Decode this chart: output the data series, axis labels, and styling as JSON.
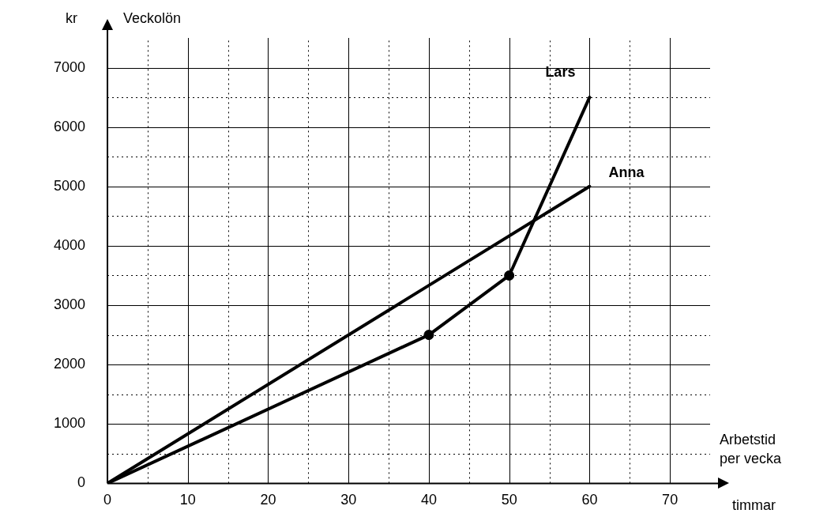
{
  "chart_data": {
    "type": "line",
    "xlabel": "Arbetstid per vecka",
    "ylabel": "Veckolön",
    "annotations": [
      "kr",
      "timmar"
    ],
    "xlim": [
      0,
      75
    ],
    "ylim": [
      0,
      7500
    ],
    "xticks": [
      0,
      {
        "value": 5,
        "label": null
      },
      10,
      {
        "value": 15,
        "label": null
      },
      20,
      {
        "value": 25,
        "label": null
      },
      30,
      {
        "value": 35,
        "label": null
      },
      40,
      {
        "value": 45,
        "label": null
      },
      50,
      {
        "value": 55,
        "label": null
      },
      60,
      {
        "value": 65,
        "label": null
      },
      70
    ],
    "yticks": [
      0,
      {
        "value": 500,
        "label": null
      },
      1000,
      {
        "value": 1500,
        "label": null
      },
      2000,
      {
        "value": 2500,
        "label": null
      },
      3000,
      {
        "value": 3500,
        "label": null
      },
      4000,
      {
        "value": 4500,
        "label": null
      },
      5000,
      {
        "value": 5500,
        "label": null
      },
      6000,
      {
        "value": 6500,
        "label": null
      },
      7000
    ],
    "grid": true,
    "legend": false,
    "series": [
      {
        "name": "Lars",
        "color": "#000000",
        "x": [
          0,
          40,
          50,
          60
        ],
        "values": [
          0,
          2500,
          3500,
          6500
        ],
        "marker": "none"
      },
      {
        "name": "Anna",
        "color": "#000000",
        "x": [
          0,
          60
        ],
        "values": [
          0,
          5000
        ],
        "marker": "none"
      },
      {
        "type": "scatter",
        "color": "#000000",
        "x": [
          40,
          50
        ],
        "values": [
          2500,
          3500
        ],
        "marker": "circle"
      }
    ]
  }
}
